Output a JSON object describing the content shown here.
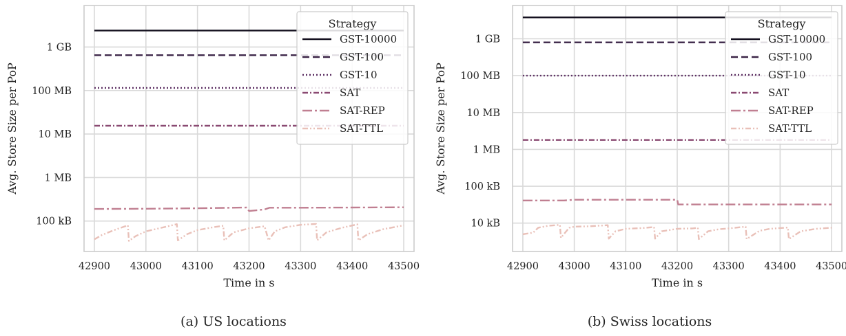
{
  "chart_data": [
    {
      "type": "line",
      "caption": "(a) US locations",
      "xlabel": "Time in s",
      "ylabel": "Avg. Store Size per PoP",
      "y_scale": "log",
      "xlim": [
        42880,
        43520
      ],
      "ylim_bytes": [
        20000,
        9000000000
      ],
      "x_ticks": [
        42900,
        43000,
        43100,
        43200,
        43300,
        43400,
        43500
      ],
      "y_ticks": [
        {
          "value": 100000,
          "label": "100 kB"
        },
        {
          "value": 1000000,
          "label": "1 MB"
        },
        {
          "value": 10000000,
          "label": "10 MB"
        },
        {
          "value": 100000000,
          "label": "100 MB"
        },
        {
          "value": 1000000000,
          "label": "1 GB"
        }
      ],
      "grid": true,
      "legend": {
        "title": "Strategy",
        "placement": "top-right"
      },
      "series": [
        {
          "name": "GST-10000",
          "style": "solid",
          "color": "#14101f",
          "x": [
            42900,
            43500
          ],
          "y": [
            2400000000,
            2400000000
          ]
        },
        {
          "name": "GST-100",
          "style": "dashed",
          "color": "#3b2447",
          "x": [
            42900,
            43500
          ],
          "y": [
            650000000,
            650000000
          ]
        },
        {
          "name": "GST-10",
          "style": "dotted",
          "color": "#5c2f62",
          "x": [
            42900,
            43500
          ],
          "y": [
            115000000,
            115000000
          ]
        },
        {
          "name": "SAT",
          "style": "dashdot",
          "color": "#8a4a72",
          "x": [
            42900,
            43500
          ],
          "y": [
            15500000,
            15500000
          ]
        },
        {
          "name": "SAT-REP",
          "style": "longdashdot",
          "color": "#c07f91",
          "x": [
            42900,
            43000,
            43100,
            43195,
            43200,
            43230,
            43240,
            43300,
            43400,
            43500
          ],
          "y": [
            190000,
            192000,
            197000,
            205000,
            170000,
            185000,
            203000,
            203000,
            205000,
            207000
          ]
        },
        {
          "name": "SAT-TTL",
          "style": "dashdotdot",
          "color": "#e9c0b8",
          "x": [
            42900,
            42915,
            42935,
            42965,
            42967,
            42980,
            43000,
            43030,
            43060,
            43062,
            43080,
            43100,
            43130,
            43150,
            43152,
            43170,
            43200,
            43230,
            43238,
            43250,
            43270,
            43300,
            43330,
            43332,
            43350,
            43380,
            43410,
            43412,
            43430,
            43460,
            43500
          ],
          "y": [
            38000,
            48000,
            60000,
            80000,
            35000,
            45000,
            58000,
            70000,
            85000,
            36000,
            50000,
            62000,
            72000,
            78000,
            36000,
            55000,
            68000,
            76000,
            36000,
            58000,
            72000,
            82000,
            86000,
            36000,
            55000,
            70000,
            84000,
            36000,
            50000,
            65000,
            80000
          ]
        }
      ]
    },
    {
      "type": "line",
      "caption": "(b) Swiss locations",
      "xlabel": "Time in s",
      "ylabel": "Avg. Store Size per PoP",
      "y_scale": "log",
      "xlim": [
        42880,
        43520
      ],
      "ylim_bytes": [
        1700,
        8000000000
      ],
      "x_ticks": [
        42900,
        43000,
        43100,
        43200,
        43300,
        43400,
        43500
      ],
      "y_ticks": [
        {
          "value": 10000,
          "label": "10 kB"
        },
        {
          "value": 100000,
          "label": "100 kB"
        },
        {
          "value": 1000000,
          "label": "1 MB"
        },
        {
          "value": 10000000,
          "label": "10 MB"
        },
        {
          "value": 100000000,
          "label": "100 MB"
        },
        {
          "value": 1000000000,
          "label": "1 GB"
        }
      ],
      "grid": true,
      "legend": {
        "title": "Strategy",
        "placement": "top-right"
      },
      "series": [
        {
          "name": "GST-10000",
          "style": "solid",
          "color": "#14101f",
          "x": [
            42900,
            43500
          ],
          "y": [
            3800000000,
            3800000000
          ]
        },
        {
          "name": "GST-100",
          "style": "dashed",
          "color": "#3b2447",
          "x": [
            42900,
            43500
          ],
          "y": [
            800000000,
            800000000
          ]
        },
        {
          "name": "GST-10",
          "style": "dotted",
          "color": "#5c2f62",
          "x": [
            42900,
            43500
          ],
          "y": [
            100000000,
            100000000
          ]
        },
        {
          "name": "SAT",
          "style": "dashdot",
          "color": "#8a4a72",
          "x": [
            42900,
            43500
          ],
          "y": [
            1800000,
            1800000
          ]
        },
        {
          "name": "SAT-REP",
          "style": "longdashdot",
          "color": "#c07f91",
          "x": [
            42900,
            42980,
            43000,
            43100,
            43200,
            43202,
            43300,
            43400,
            43500
          ],
          "y": [
            41000,
            41000,
            43000,
            43000,
            43000,
            32000,
            32000,
            32000,
            32000
          ]
        },
        {
          "name": "SAT-TTL",
          "style": "dashdotdot",
          "color": "#e9c0b8",
          "x": [
            42900,
            42920,
            42930,
            42950,
            42972,
            42974,
            42990,
            43000,
            43030,
            43065,
            43067,
            43080,
            43100,
            43130,
            43155,
            43157,
            43170,
            43200,
            43230,
            43240,
            43242,
            43260,
            43280,
            43300,
            43333,
            43335,
            43360,
            43380,
            43415,
            43417,
            43440,
            43470,
            43500
          ],
          "y": [
            5000,
            5500,
            7500,
            8500,
            9000,
            4000,
            7500,
            8000,
            8200,
            8800,
            3800,
            6000,
            7000,
            7300,
            7800,
            3800,
            6000,
            7000,
            7200,
            7500,
            3700,
            6000,
            6800,
            7200,
            8000,
            3700,
            6200,
            7000,
            7600,
            3700,
            6000,
            7000,
            7500
          ]
        }
      ]
    }
  ]
}
